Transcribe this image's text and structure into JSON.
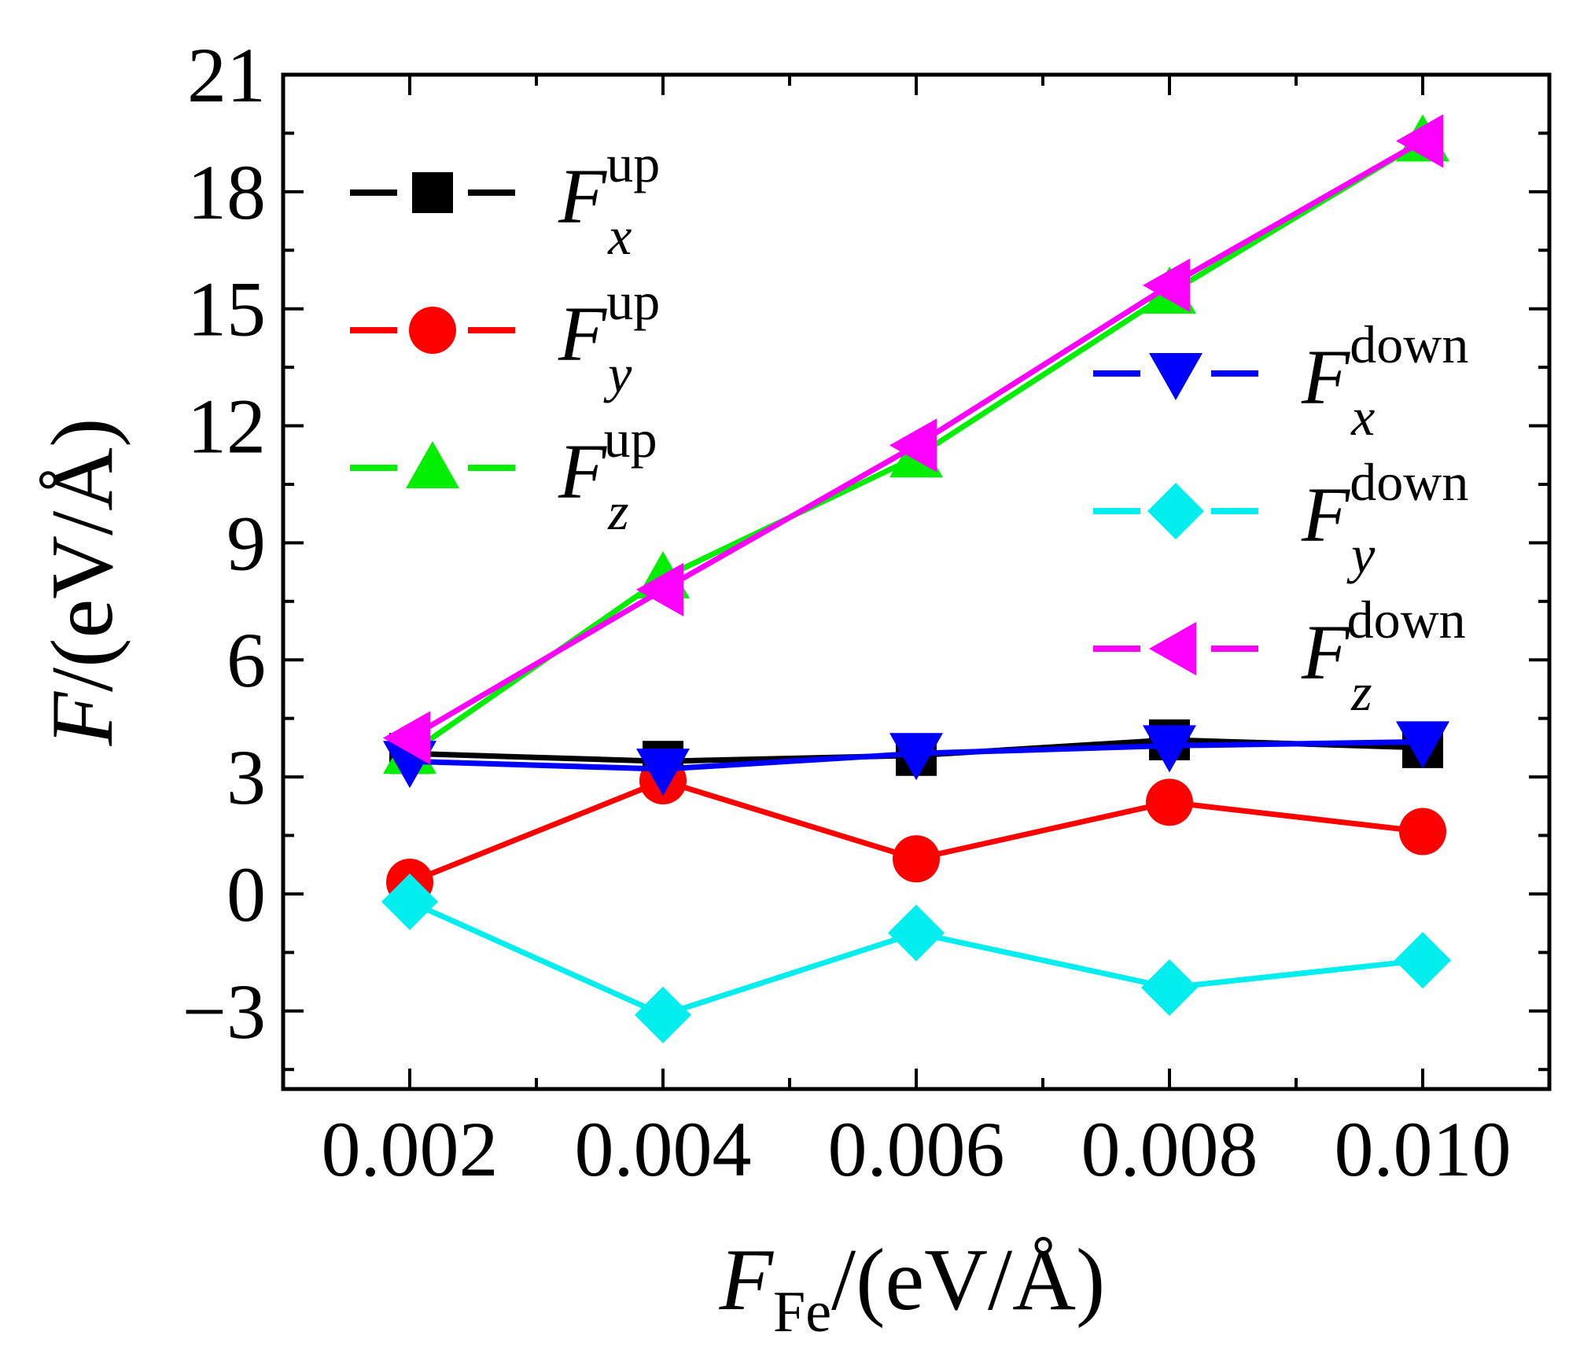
{
  "chart_data": {
    "type": "line",
    "title": "",
    "x": [
      0.002,
      0.004,
      0.006,
      0.008,
      0.01
    ],
    "x_tick_labels": [
      "0.002",
      "0.004",
      "0.006",
      "0.008",
      "0.010"
    ],
    "xlim": [
      0.001,
      0.011
    ],
    "ylim": [
      -5,
      21
    ],
    "y_ticks": [
      -3,
      0,
      3,
      6,
      9,
      12,
      15,
      18,
      21
    ],
    "y_tick_labels": [
      "−3",
      "0",
      "3",
      "6",
      "9",
      "12",
      "15",
      "18",
      "21"
    ],
    "xlabel": {
      "main": "F",
      "sub": "Fe",
      "unit": "/(eV/Å)"
    },
    "ylabel": {
      "main": "F",
      "unit": "/(eV/Å)"
    },
    "grid": false,
    "series": [
      {
        "id": "fx-up",
        "symbol": "F",
        "component": "x",
        "spin": "up",
        "color": "#000000",
        "marker": "square",
        "legend": "left",
        "values": [
          3.6,
          3.4,
          3.55,
          3.95,
          3.75
        ]
      },
      {
        "id": "fy-up",
        "symbol": "F",
        "component": "y",
        "spin": "up",
        "color": "#ff0000",
        "marker": "circle",
        "legend": "left",
        "values": [
          0.3,
          2.9,
          0.9,
          2.35,
          1.6
        ]
      },
      {
        "id": "fz-up",
        "symbol": "F",
        "component": "z",
        "spin": "up",
        "color": "#00ee00",
        "marker": "triangle-up",
        "legend": "left",
        "values": [
          3.6,
          8.1,
          11.2,
          15.4,
          19.3
        ]
      },
      {
        "id": "fx-down",
        "symbol": "F",
        "component": "x",
        "spin": "down",
        "color": "#0000ff",
        "marker": "triangle-down",
        "legend": "right",
        "values": [
          3.4,
          3.2,
          3.6,
          3.8,
          3.9
        ]
      },
      {
        "id": "fy-down",
        "symbol": "F",
        "component": "y",
        "spin": "down",
        "color": "#00eeee",
        "marker": "diamond",
        "legend": "right",
        "values": [
          -0.2,
          -3.1,
          -1.0,
          -2.4,
          -1.7
        ]
      },
      {
        "id": "fz-down",
        "symbol": "F",
        "component": "z",
        "spin": "down",
        "color": "#ff00ff",
        "marker": "triangle-left",
        "legend": "right",
        "values": [
          4.0,
          7.8,
          11.5,
          15.6,
          19.3
        ]
      }
    ]
  }
}
